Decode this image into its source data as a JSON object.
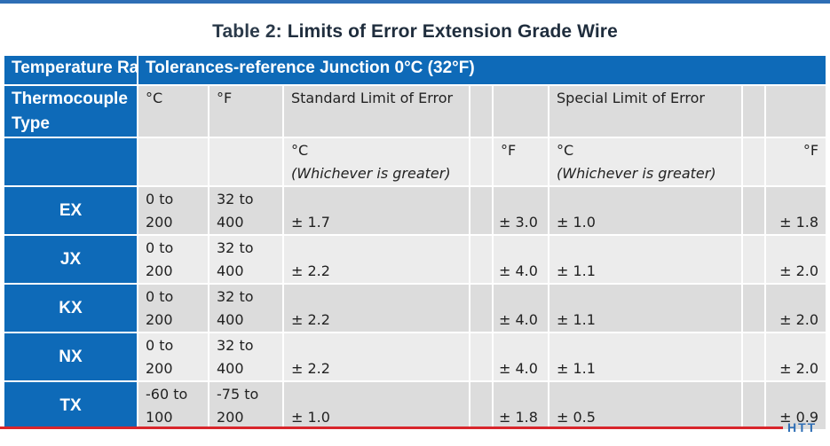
{
  "title": {
    "prefix": "Table 2:",
    "text": "Limits of Error Extension Grade Wire"
  },
  "header": {
    "temp_range": "Temperature Range",
    "tolerances": "Tolerances-reference Junction 0°C (32°F)",
    "thermo_type": "Thermocouple Type",
    "c": "°C",
    "f": "°F",
    "standard": "Standard Limit of Error",
    "special": "Special Limit of Error",
    "std_c": "°C",
    "std_c_note": "(Whichever is greater)",
    "std_f": "°F",
    "spc_c": "°C",
    "spc_c_note": "(Whichever is greater)",
    "spc_f": "°F"
  },
  "rows": [
    {
      "type": "EX",
      "c_top": "0 to",
      "c_bot": "200",
      "f_top": "32 to",
      "f_bot": "400",
      "std_c": "± 1.7",
      "std_f": "± 3.0",
      "spc_c": "± 1.0",
      "spc_f": "± 1.8"
    },
    {
      "type": "JX",
      "c_top": "0 to",
      "c_bot": "200",
      "f_top": "32 to",
      "f_bot": "400",
      "std_c": "± 2.2",
      "std_f": "± 4.0",
      "spc_c": "± 1.1",
      "spc_f": "± 2.0"
    },
    {
      "type": "KX",
      "c_top": "0 to",
      "c_bot": "200",
      "f_top": "32 to",
      "f_bot": "400",
      "std_c": "± 2.2",
      "std_f": "± 4.0",
      "spc_c": "± 1.1",
      "spc_f": "± 2.0"
    },
    {
      "type": "NX",
      "c_top": "0 to",
      "c_bot": "200",
      "f_top": "32 to",
      "f_bot": "400",
      "std_c": "± 2.2",
      "std_f": "± 4.0",
      "spc_c": "± 1.1",
      "spc_f": "± 2.0"
    },
    {
      "type": "TX",
      "c_top": "-60 to",
      "c_bot": "100",
      "f_top": "-75 to",
      "f_bot": "200",
      "std_c": "± 1.0",
      "std_f": "± 1.8",
      "spc_c": "± 0.5",
      "spc_f": "± 0.9"
    }
  ],
  "logo": "HTT",
  "colors": {
    "header_blue": "#0e6ab8",
    "rule_red": "#d8262c",
    "rule_blue": "#2e6eb5"
  }
}
